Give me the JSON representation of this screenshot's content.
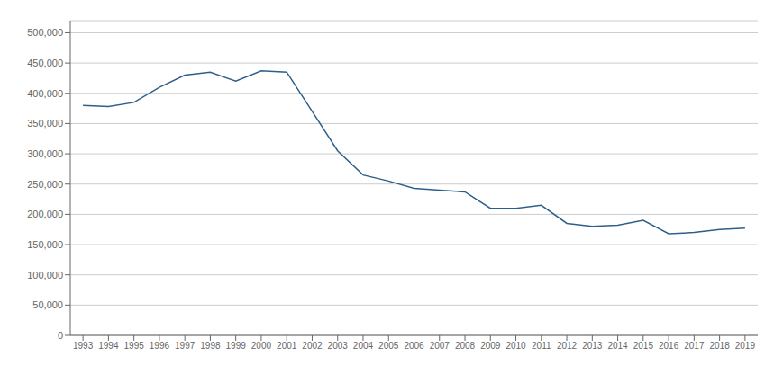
{
  "chart_data": {
    "type": "line",
    "x": [
      1993,
      1994,
      1995,
      1996,
      1997,
      1998,
      1999,
      2000,
      2001,
      2002,
      2003,
      2004,
      2005,
      2006,
      2007,
      2008,
      2009,
      2010,
      2011,
      2012,
      2013,
      2014,
      2015,
      2016,
      2017,
      2018,
      2019
    ],
    "values": [
      380000,
      378000,
      385000,
      410000,
      430000,
      435000,
      420000,
      437000,
      435000,
      370000,
      305000,
      265000,
      255000,
      243000,
      240000,
      237000,
      210000,
      210000,
      215000,
      185000,
      180000,
      182000,
      190000,
      168000,
      170000,
      175000,
      177000
    ],
    "color": "#2e5f8a",
    "xlim": [
      1992.5,
      2019.5
    ],
    "xticks": [
      1993,
      1994,
      1995,
      1996,
      1997,
      1998,
      1999,
      2000,
      2001,
      2002,
      2003,
      2004,
      2005,
      2006,
      2007,
      2008,
      2009,
      2010,
      2011,
      2012,
      2013,
      2014,
      2015,
      2016,
      2017,
      2018,
      2019
    ],
    "ylim": [
      0,
      520000
    ],
    "yticks": [
      0,
      {
        "value": 50000,
        "label": "50,000"
      },
      {
        "value": 100000,
        "label": "100,000"
      },
      {
        "value": 150000,
        "label": "150,000"
      },
      {
        "value": 200000,
        "label": "200,000"
      },
      {
        "value": 250000,
        "label": "250,000"
      },
      {
        "value": 300000,
        "label": "300,000"
      },
      {
        "value": 350000,
        "label": "350,000"
      },
      {
        "value": 400000,
        "label": "400,000"
      },
      {
        "value": 450000,
        "label": "450,000"
      },
      {
        "value": 500000,
        "label": "500,000"
      }
    ],
    "grid": true
  }
}
